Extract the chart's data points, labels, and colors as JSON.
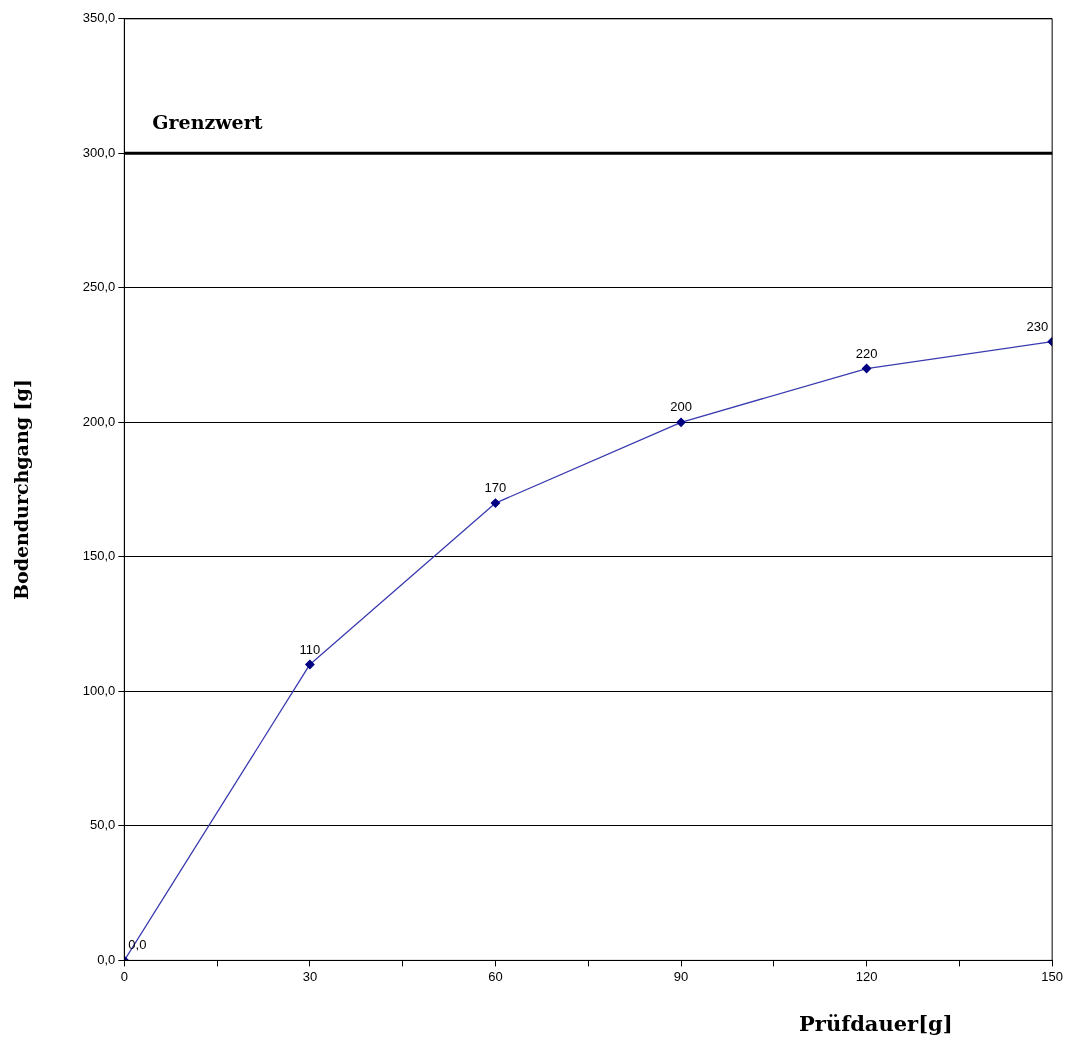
{
  "chart_data": {
    "type": "line",
    "xlabel": "Prüfdauer[g]",
    "ylabel": "Bodendurchgang [g]",
    "x": [
      0,
      30,
      60,
      90,
      120,
      150
    ],
    "series": [
      {
        "color": "#3a3ab0",
        "values": [
          0,
          110,
          170,
          200,
          220,
          230
        ],
        "value_labels": [
          "0,0",
          "110",
          "170",
          "200",
          "220",
          "230"
        ]
      }
    ],
    "xlim": [
      0,
      150
    ],
    "xticks": [
      0,
      {
        "value": 15,
        "label": null
      },
      30,
      {
        "value": 45,
        "label": null
      },
      60,
      {
        "value": 75,
        "label": null
      },
      90,
      {
        "value": 105,
        "label": null
      },
      120,
      {
        "value": 135,
        "label": null
      },
      150
    ],
    "ylim": [
      0,
      350
    ],
    "yticks": [
      {
        "value": 0,
        "label": "0,0"
      },
      {
        "value": 50,
        "label": "50,0"
      },
      {
        "value": 100,
        "label": "100,0"
      },
      {
        "value": 150,
        "label": "150,0"
      },
      {
        "value": 200,
        "label": "200,0"
      },
      {
        "value": 250,
        "label": "250,0"
      },
      {
        "value": 300,
        "label": "300,0"
      },
      {
        "value": 350,
        "label": "350,0"
      }
    ],
    "ref_lines": [
      {
        "axis": "y",
        "value": 300,
        "label": "Grenzwert",
        "color": "#000000"
      }
    ],
    "grid": "y",
    "marker": "diamond",
    "line_style": "solid",
    "legend": false
  }
}
